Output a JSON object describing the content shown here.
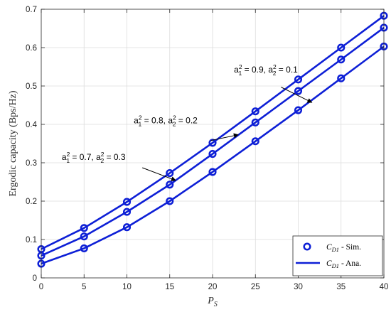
{
  "chart_data": {
    "type": "line",
    "xlabel": "P_S",
    "xlabel_main": "P",
    "xlabel_sub": "S",
    "ylabel": "Ergodic capacity (Bps/Hz)",
    "xlim": [
      0,
      40
    ],
    "ylim": [
      0,
      0.7
    ],
    "xticks": [
      0,
      5,
      10,
      15,
      20,
      25,
      30,
      35,
      40
    ],
    "yticks": [
      0,
      0.1,
      0.2,
      0.3,
      0.4,
      0.5,
      0.6,
      0.7
    ],
    "grid": true,
    "color": "#0d1fd6",
    "x": [
      0,
      5,
      10,
      15,
      20,
      25,
      30,
      35,
      40
    ],
    "series": [
      {
        "label": "a_1^2 = 0.9, a_2^2 = 0.1",
        "values": [
          0.075,
          0.13,
          0.198,
          0.273,
          0.352,
          0.434,
          0.517,
          0.6,
          0.683
        ]
      },
      {
        "label": "a_1^2 = 0.8, a_2^2 = 0.2",
        "values": [
          0.058,
          0.108,
          0.172,
          0.243,
          0.323,
          0.405,
          0.487,
          0.569,
          0.652
        ]
      },
      {
        "label": "a_1^2 = 0.7, a_2^2 = 0.3",
        "values": [
          0.037,
          0.077,
          0.132,
          0.2,
          0.276,
          0.356,
          0.437,
          0.52,
          0.603
        ]
      }
    ],
    "annotations": [
      {
        "main": "a",
        "sub": "1",
        "sup": "2",
        "val1": " = 0.9, ",
        "main2": "a",
        "sub2": "2",
        "sup2": "2",
        "val2": " = 0.1",
        "text_x": 22.5,
        "text_y": 0.535,
        "arrow_from": [
          28.0,
          0.497
        ],
        "arrow_to": [
          31.6,
          0.457
        ]
      },
      {
        "main": "a",
        "sub": "1",
        "sup": "2",
        "val1": " = 0.8, ",
        "main2": "a",
        "sub2": "2",
        "sup2": "2",
        "val2": " = 0.2",
        "text_x": 10.8,
        "text_y": 0.403,
        "arrow_from": [
          19.8,
          0.358
        ],
        "arrow_to": [
          23.0,
          0.373
        ]
      },
      {
        "main": "a",
        "sub": "1",
        "sup": "2",
        "val1": " = 0.7, ",
        "main2": "a",
        "sub2": "2",
        "sup2": "2",
        "val2": " = 0.3",
        "text_x": 2.4,
        "text_y": 0.307,
        "arrow_from": [
          11.8,
          0.287
        ],
        "arrow_to": [
          15.7,
          0.254
        ]
      }
    ],
    "legend": {
      "position": "bottom-right",
      "entries": [
        {
          "marker": "circle",
          "main": "C",
          "sub": "D1",
          "suffix": " - Sim."
        },
        {
          "marker": "line",
          "main": "C",
          "sub": "D1",
          "suffix": " - Ana."
        }
      ]
    }
  }
}
